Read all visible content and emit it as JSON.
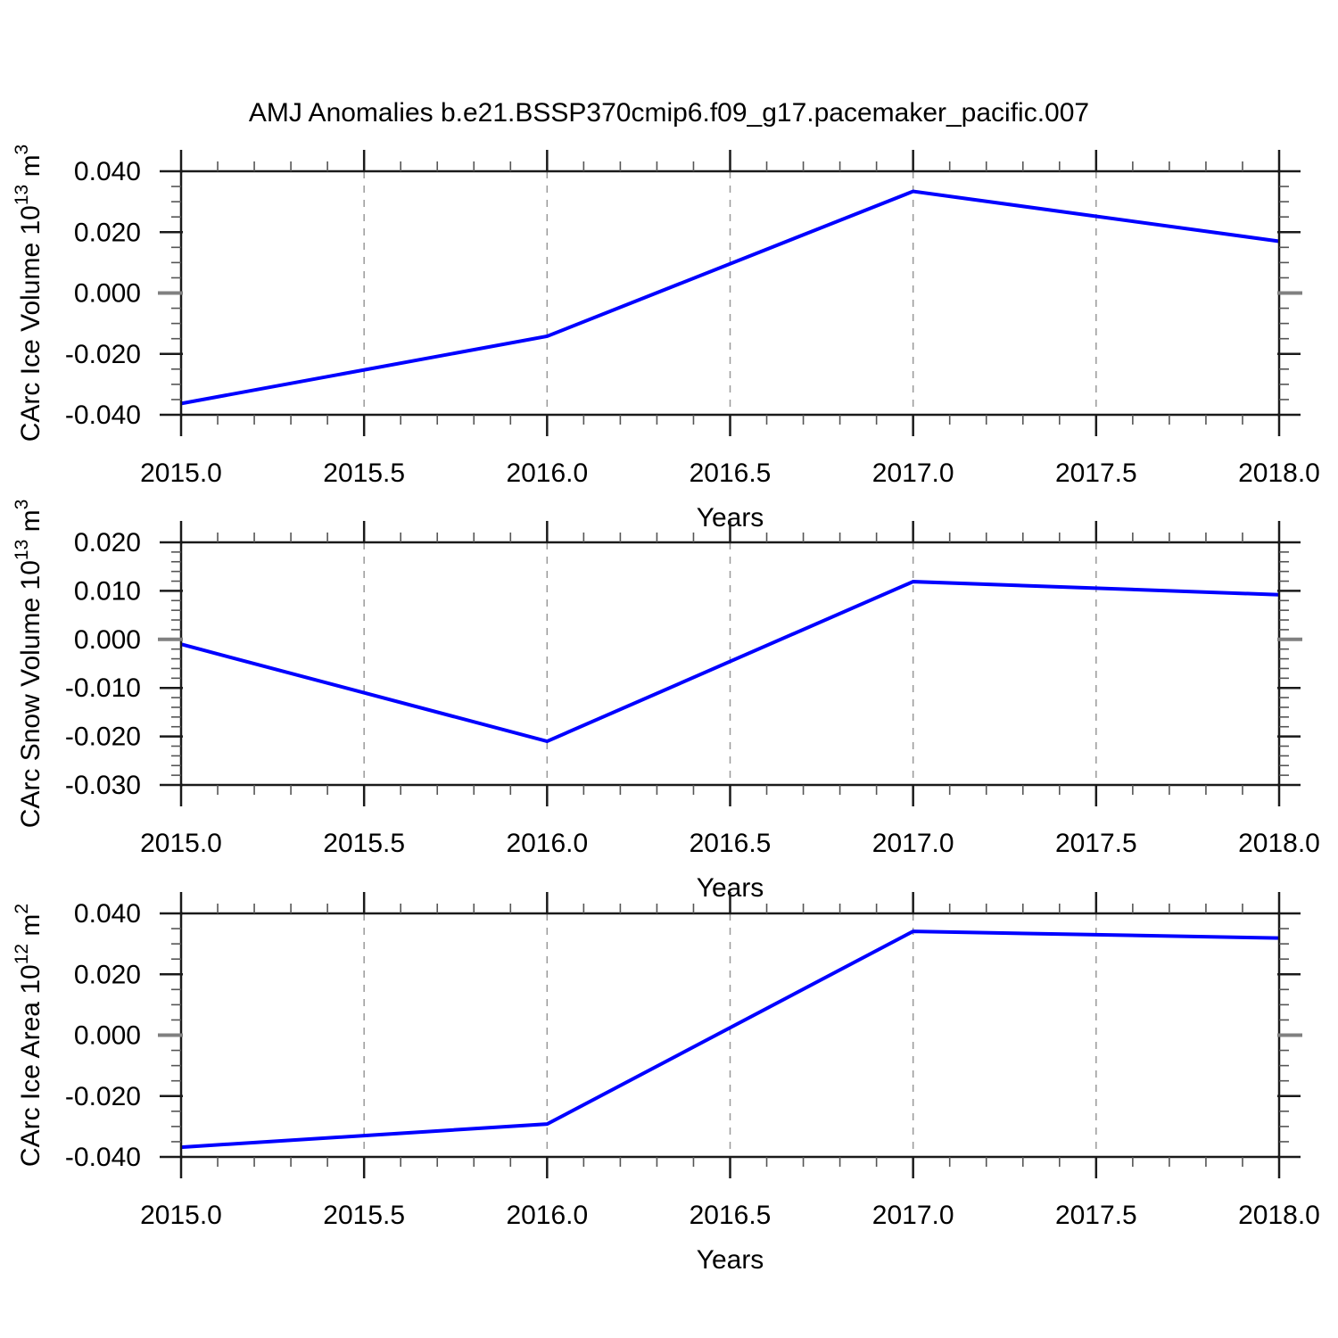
{
  "title": "AMJ Anomalies b.e21.BSSP370cmip6.f09_g17.pacemaker_pacific.007",
  "style": {
    "line_color": "#0000ff",
    "frame_color": "#1a1a1a",
    "minor_tick_color": "#555555",
    "zero_tick_color": "#808080",
    "grid_color": "#999999",
    "background": "#ffffff"
  },
  "chart_data": [
    {
      "type": "line",
      "x": [
        2015.0,
        2016.0,
        2017.0,
        2018.0
      ],
      "values": [
        -0.0363,
        -0.0142,
        0.0334,
        0.017
      ],
      "xlabel": "Years",
      "ylabel": "CArc Ice Volume 10^13 m^3",
      "ylabel_parts": [
        {
          "t": "CArc Ice Volume 10",
          "sup": false
        },
        {
          "t": "13",
          "sup": true
        },
        {
          "t": " m",
          "sup": false
        },
        {
          "t": "3",
          "sup": true
        }
      ],
      "xlim": [
        2015.0,
        2018.0
      ],
      "ylim": [
        -0.04,
        0.04
      ],
      "xticks": {
        "step": 0.5,
        "minor_step": 0.1,
        "labels": [
          "2015.0",
          "2015.5",
          "2016.0",
          "2016.5",
          "2017.0",
          "2017.5",
          "2018.0"
        ]
      },
      "yticks": {
        "values": [
          0.04,
          0.02,
          0.0,
          -0.02,
          -0.04
        ],
        "labels": [
          "0.040",
          "0.020",
          "0.000",
          "-0.020",
          "-0.040"
        ],
        "minor_step": 0.005
      },
      "gridlines_x": [
        2015.5,
        2016.0,
        2016.5,
        2017.0,
        2017.5
      ],
      "grid": "vertical-dashed",
      "legend": "none"
    },
    {
      "type": "line",
      "x": [
        2015.0,
        2016.0,
        2017.0,
        2018.0
      ],
      "values": [
        -0.001,
        -0.021,
        0.0119,
        0.0092
      ],
      "xlabel": "Years",
      "ylabel": "CArc Snow Volume 10^13 m^3",
      "ylabel_parts": [
        {
          "t": "CArc Snow Volume 10",
          "sup": false
        },
        {
          "t": "13",
          "sup": true
        },
        {
          "t": " m",
          "sup": false
        },
        {
          "t": "3",
          "sup": true
        }
      ],
      "xlim": [
        2015.0,
        2018.0
      ],
      "ylim": [
        -0.03,
        0.02
      ],
      "xticks": {
        "step": 0.5,
        "minor_step": 0.1,
        "labels": [
          "2015.0",
          "2015.5",
          "2016.0",
          "2016.5",
          "2017.0",
          "2017.5",
          "2018.0"
        ]
      },
      "yticks": {
        "values": [
          0.02,
          0.01,
          0.0,
          -0.01,
          -0.02,
          -0.03
        ],
        "labels": [
          "0.020",
          "0.010",
          "0.000",
          "-0.010",
          "-0.020",
          "-0.030"
        ],
        "minor_step": 0.002
      },
      "gridlines_x": [
        2015.5,
        2016.0,
        2016.5,
        2017.0,
        2017.5
      ],
      "grid": "vertical-dashed",
      "legend": "none"
    },
    {
      "type": "line",
      "x": [
        2015.0,
        2016.0,
        2017.0,
        2018.0
      ],
      "values": [
        -0.0368,
        -0.0292,
        0.0341,
        0.0319
      ],
      "xlabel": "Years",
      "ylabel": "CArc Ice Area 10^12 m^2",
      "ylabel_parts": [
        {
          "t": "CArc Ice Area 10",
          "sup": false
        },
        {
          "t": "12",
          "sup": true
        },
        {
          "t": " m",
          "sup": false
        },
        {
          "t": "2",
          "sup": true
        }
      ],
      "xlim": [
        2015.0,
        2018.0
      ],
      "ylim": [
        -0.04,
        0.04
      ],
      "xticks": {
        "step": 0.5,
        "minor_step": 0.1,
        "labels": [
          "2015.0",
          "2015.5",
          "2016.0",
          "2016.5",
          "2017.0",
          "2017.5",
          "2018.0"
        ]
      },
      "yticks": {
        "values": [
          0.04,
          0.02,
          0.0,
          -0.02,
          -0.04
        ],
        "labels": [
          "0.040",
          "0.020",
          "0.000",
          "-0.020",
          "-0.040"
        ],
        "minor_step": 0.005
      },
      "gridlines_x": [
        2015.5,
        2016.0,
        2016.5,
        2017.0,
        2017.5
      ],
      "grid": "vertical-dashed",
      "legend": "none"
    }
  ]
}
